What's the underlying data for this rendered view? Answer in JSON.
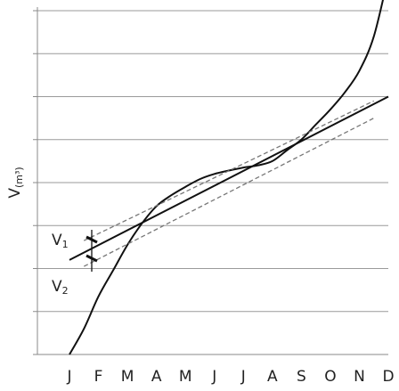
{
  "chart_data": {
    "type": "line",
    "ylabel": "V",
    "ylabel_unit": "(m³)",
    "categories": [
      "J",
      "F",
      "M",
      "A",
      "M",
      "J",
      "J",
      "A",
      "S",
      "O",
      "N",
      "D"
    ],
    "x_range": [
      0,
      11
    ],
    "y_range": [
      0,
      8
    ],
    "grid": "horizontal",
    "y_ticks": [
      0,
      1,
      2,
      3,
      4,
      5,
      6,
      7,
      8
    ],
    "series": [
      {
        "style": "solid",
        "x": [
          0,
          0.5,
          1,
          1.5,
          2,
          2.5,
          3,
          3.5,
          4,
          4.5,
          5,
          5.5,
          6,
          6.5,
          7,
          7.5,
          8,
          8.5,
          9,
          9.5,
          10,
          10.5,
          11
        ],
        "y": [
          0.0,
          0.6,
          1.35,
          1.95,
          2.55,
          3.05,
          3.45,
          3.7,
          3.9,
          4.08,
          4.2,
          4.28,
          4.35,
          4.4,
          4.5,
          4.75,
          5.0,
          5.35,
          5.7,
          6.1,
          6.6,
          7.4,
          8.8
        ]
      },
      {
        "style": "solid",
        "x": [
          0,
          11
        ],
        "y": [
          2.2,
          6.0
        ]
      },
      {
        "style": "dashed",
        "x": [
          0.5,
          10.5
        ],
        "y": [
          2.65,
          5.9
        ]
      },
      {
        "style": "dashed",
        "x": [
          0.5,
          10.5
        ],
        "y": [
          2.05,
          5.5
        ]
      }
    ],
    "annotations": [
      {
        "text": "V",
        "sub": "1"
      },
      {
        "text": "V",
        "sub": "2"
      }
    ]
  }
}
